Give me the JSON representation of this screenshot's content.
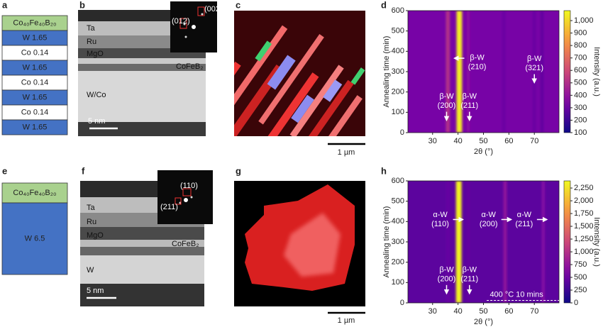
{
  "panel_labels": [
    "a",
    "b",
    "c",
    "d",
    "e",
    "f",
    "g",
    "h"
  ],
  "stack_a": [
    {
      "label": "Co₄₀Fe₄₀B₂₀",
      "color": "#a9d18e"
    },
    {
      "label": "W 1.65",
      "color": "#4472c4"
    },
    {
      "label": "Co 0.14",
      "color": "#ffffff"
    },
    {
      "label": "W 1.65",
      "color": "#4472c4"
    },
    {
      "label": "Co 0.14",
      "color": "#ffffff"
    },
    {
      "label": "W 1.65",
      "color": "#4472c4"
    },
    {
      "label": "Co 0.14",
      "color": "#ffffff"
    },
    {
      "label": "W 1.65",
      "color": "#4472c4"
    }
  ],
  "stack_e": [
    {
      "label": "Co₄₀Fe₄₀B₂₀",
      "color": "#a9d18e"
    },
    {
      "label": "W 6.5",
      "color": "#4472c4"
    }
  ],
  "tem_b": {
    "layers": [
      "Ta",
      "Ru",
      "MgO",
      "CoFeB₂",
      "W/Co"
    ],
    "scale": "5 nm",
    "fft": [
      "(012)",
      "(002)"
    ]
  },
  "tem_f": {
    "layers": [
      "Ta",
      "Ru",
      "MgO",
      "CoFeB₂",
      "W"
    ],
    "scale": "5 nm",
    "fft": [
      "(110)",
      "(211)"
    ]
  },
  "map_c": {
    "scale": "1 µm"
  },
  "map_g": {
    "scale": "1 µm"
  },
  "chart_data": [
    {
      "type": "heatmap",
      "x_label": "2θ (°)",
      "y_label": "Annealing time (min)",
      "colorbar_label": "Intensity (a.u.)",
      "xlim": [
        20.3,
        79.7
      ],
      "xticks": [
        30,
        40,
        50,
        60,
        70
      ],
      "ylim": [
        0,
        600
      ],
      "yticks": [
        0,
        100,
        200,
        300,
        400,
        500,
        600
      ],
      "clim": [
        100,
        1080
      ],
      "cticks": [
        100,
        200,
        300,
        400,
        500,
        600,
        700,
        800,
        900,
        {
          "value": 1000,
          "label": "1,000"
        }
      ],
      "background_intensity": 330,
      "bands": {
        "x": [
          36,
          40.5,
          44,
          58,
          70,
          73
        ],
        "intensity": [
          520,
          1050,
          380,
          300,
          300,
          280
        ]
      },
      "annotations": [
        {
          "lines": [
            "β-W",
            "(210)"
          ],
          "x": 47.5,
          "y": 345,
          "arrow": "left"
        },
        {
          "lines": [
            "β-W",
            "(200)"
          ],
          "x": 35.5,
          "y": 155,
          "arrow": "down"
        },
        {
          "lines": [
            "β-W",
            "(211)"
          ],
          "x": 44.5,
          "y": 155,
          "arrow": "down"
        },
        {
          "lines": [
            "β-W",
            "(321)"
          ],
          "x": 70,
          "y": 340,
          "arrow": "down"
        }
      ]
    },
    {
      "type": "heatmap",
      "x_label": "2θ (°)",
      "y_label": "Annealing time (min)",
      "colorbar_label": "Intensity (a.u.)",
      "xlim": [
        20.3,
        79.7
      ],
      "xticks": [
        30,
        40,
        50,
        60,
        70
      ],
      "ylim": [
        0,
        600
      ],
      "yticks": [
        0,
        100,
        200,
        300,
        400,
        500,
        600
      ],
      "clim": [
        0,
        2390
      ],
      "cticks": [
        0,
        250,
        500,
        750,
        {
          "value": 1000,
          "label": "1,000"
        },
        {
          "value": 1250,
          "label": "1,250"
        },
        {
          "value": 1500,
          "label": "1,500"
        },
        {
          "value": 1750,
          "label": "1,750"
        },
        {
          "value": 2000,
          "label": "2,000"
        },
        {
          "value": 2250,
          "label": "2,250"
        }
      ],
      "background_intensity": 420,
      "bands": {
        "x": [
          36,
          40.3,
          44,
          58.5,
          73.5
        ],
        "intensity": [
          480,
          2350,
          460,
          750,
          650
        ]
      },
      "annotations": [
        {
          "lines": [
            "α-W",
            "(110)"
          ],
          "x": 33,
          "y": 410,
          "arrow": "right"
        },
        {
          "lines": [
            "α-W",
            "(200)"
          ],
          "x": 52,
          "y": 410,
          "arrow": "right"
        },
        {
          "lines": [
            "α-W",
            "(211)"
          ],
          "x": 66,
          "y": 410,
          "arrow": "right"
        },
        {
          "lines": [
            "β-W",
            "(200)"
          ],
          "x": 35.5,
          "y": 140,
          "arrow": "down"
        },
        {
          "lines": [
            "β-W",
            "(211)"
          ],
          "x": 44.5,
          "y": 140,
          "arrow": "down"
        },
        {
          "lines": [
            "400 °C 10 mins"
          ],
          "x": 63,
          "y": 40,
          "arrow": "dash"
        }
      ]
    }
  ]
}
